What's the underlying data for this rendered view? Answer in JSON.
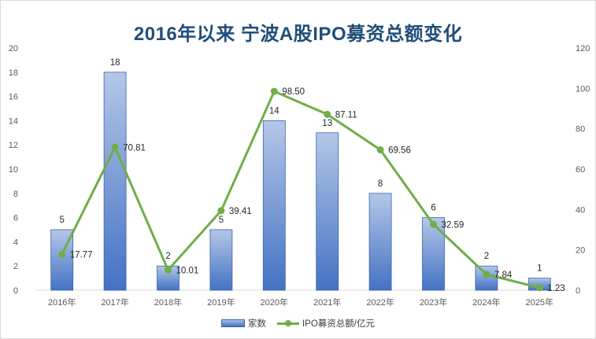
{
  "title": "2016年以来 宁波A股IPO募资总额变化",
  "colors": {
    "bar_top": "#b4c7e7",
    "bar_bottom": "#4472c4",
    "line": "#70ad47",
    "title": "#1f4e79"
  },
  "legend": {
    "bar_label": "家数",
    "line_label": "IPO募资总额/亿元"
  },
  "chart_data": {
    "type": "bar",
    "combo": "bar-line-dual-axis",
    "categories": [
      "2016年",
      "2017年",
      "2018年",
      "2019年",
      "2020年",
      "2021年",
      "2022年",
      "2023年",
      "2024年",
      "2025年"
    ],
    "series": [
      {
        "name": "家数",
        "type": "bar",
        "axis": "left",
        "values": [
          5,
          18,
          2,
          5,
          14,
          13,
          8,
          6,
          2,
          1
        ]
      },
      {
        "name": "IPO募资总额/亿元",
        "type": "line",
        "axis": "right",
        "values": [
          17.77,
          70.81,
          10.01,
          39.41,
          98.5,
          87.11,
          69.56,
          32.59,
          7.84,
          1.23
        ]
      }
    ],
    "bar_labels": [
      "5",
      "18",
      "2",
      "5",
      "14",
      "13",
      "8",
      "6",
      "2",
      "1"
    ],
    "line_labels": [
      "17.77",
      "70.81",
      "10.01",
      "39.41",
      "98.50",
      "87.11",
      "69.56",
      "32.59",
      "7.84",
      "1.23"
    ],
    "y_left": {
      "range": [
        0,
        20
      ],
      "ticks": [
        "0",
        "2",
        "4",
        "6",
        "8",
        "10",
        "12",
        "14",
        "16",
        "18",
        "20"
      ]
    },
    "y_right": {
      "range": [
        0,
        120
      ],
      "ticks": [
        "0",
        "20",
        "40",
        "60",
        "80",
        "100",
        "120"
      ]
    },
    "grid": false,
    "legend_position": "bottom"
  }
}
